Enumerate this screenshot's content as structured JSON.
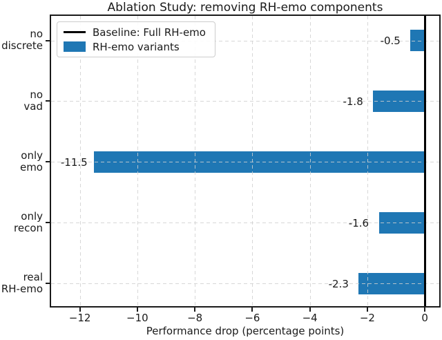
{
  "chart_data": {
    "type": "bar",
    "orientation": "horizontal",
    "title": "Ablation Study: removing RH-emo components",
    "xlabel": "Performance drop (percentage points)",
    "categories": [
      [
        "no",
        "discrete"
      ],
      [
        "no",
        "vad"
      ],
      [
        "only",
        "emo"
      ],
      [
        "only",
        "recon"
      ],
      [
        "real",
        "RH-emo"
      ]
    ],
    "values": [
      -0.5,
      -1.8,
      -11.5,
      -1.6,
      -2.3
    ],
    "bar_labels": [
      "-0.5",
      "-1.8",
      "-11.5",
      "-1.6",
      "-2.3"
    ],
    "bar_color": "#1f77b4",
    "xlim": [
      -13,
      0.5
    ],
    "x_ticks": [
      -12,
      -10,
      -8,
      -6,
      -4,
      -2,
      0
    ],
    "x_tick_labels": [
      "−12",
      "−10",
      "−8",
      "−6",
      "−4",
      "−2",
      "0"
    ],
    "baseline_x": 0,
    "baseline_color": "#000000",
    "grid": {
      "on": true,
      "style": "dashed",
      "color": "#d0d0d0",
      "above_bars": true
    },
    "legend": {
      "position": "upper-left",
      "entries": [
        {
          "swatch": "line",
          "color": "#000000",
          "label": "Baseline: Full RH-emo"
        },
        {
          "swatch": "patch",
          "color": "#1f77b4",
          "label": "RH-emo variants"
        }
      ]
    }
  }
}
